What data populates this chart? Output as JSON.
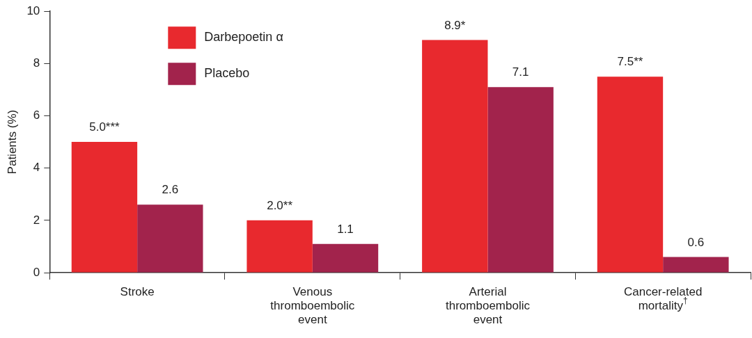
{
  "chart_data": {
    "type": "bar",
    "ylabel": "Patients (%)",
    "categories": [
      "Stroke",
      "Venous thromboembolic event",
      "Arterial thromboembolic event",
      "Cancer-related mortality$^{†}$"
    ],
    "series": [
      {
        "name": "Darbepoetin α",
        "color": "#e8292e",
        "values": [
          5.0,
          2.0,
          8.9,
          7.5
        ],
        "value_labels": [
          "5.0***",
          "2.0**",
          "8.9*",
          "7.5**"
        ]
      },
      {
        "name": "Placebo",
        "color": "#a2234c",
        "values": [
          2.6,
          1.1,
          7.1,
          0.6
        ],
        "value_labels": [
          "2.6",
          "1.1",
          "7.1",
          "0.6"
        ]
      }
    ],
    "ylim": [
      0,
      10
    ],
    "yticks": [
      0,
      2,
      4,
      6,
      8,
      10
    ],
    "grid": false,
    "legend": "top left"
  }
}
